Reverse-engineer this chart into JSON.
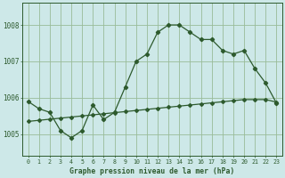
{
  "background_color": "#cde8e8",
  "grid_color": "#99bb99",
  "line_color": "#2d5a2d",
  "title": "Graphe pression niveau de la mer (hPa)",
  "xlim": [
    -0.5,
    23.5
  ],
  "ylim": [
    1004.4,
    1008.6
  ],
  "yticks": [
    1005,
    1006,
    1007,
    1008
  ],
  "xticks": [
    0,
    1,
    2,
    3,
    4,
    5,
    6,
    7,
    8,
    9,
    10,
    11,
    12,
    13,
    14,
    15,
    16,
    17,
    18,
    19,
    20,
    21,
    22,
    23
  ],
  "series1_x": [
    0,
    1,
    2,
    3,
    4,
    5,
    6,
    7,
    8,
    9,
    10,
    11,
    12,
    13,
    14,
    15,
    16,
    17,
    18,
    19,
    20,
    21,
    22,
    23
  ],
  "series1_y": [
    1005.9,
    1005.7,
    1005.6,
    1005.1,
    1004.9,
    1005.1,
    1005.8,
    1005.4,
    1005.6,
    1006.3,
    1007.0,
    1007.2,
    1007.8,
    1008.0,
    1008.0,
    1007.8,
    1007.6,
    1007.6,
    1007.3,
    1007.2,
    1007.3,
    1006.8,
    1006.4,
    1005.85
  ],
  "series2_x": [
    0,
    1,
    2,
    3,
    4,
    5,
    6,
    7,
    8,
    9,
    10,
    11,
    12,
    13,
    14,
    15,
    16,
    17,
    18,
    19,
    20,
    21,
    22,
    23
  ],
  "series2_y": [
    1005.35,
    1005.38,
    1005.41,
    1005.44,
    1005.47,
    1005.5,
    1005.53,
    1005.56,
    1005.59,
    1005.62,
    1005.65,
    1005.68,
    1005.71,
    1005.74,
    1005.77,
    1005.8,
    1005.83,
    1005.86,
    1005.89,
    1005.92,
    1005.95,
    1005.95,
    1005.95,
    1005.88
  ]
}
